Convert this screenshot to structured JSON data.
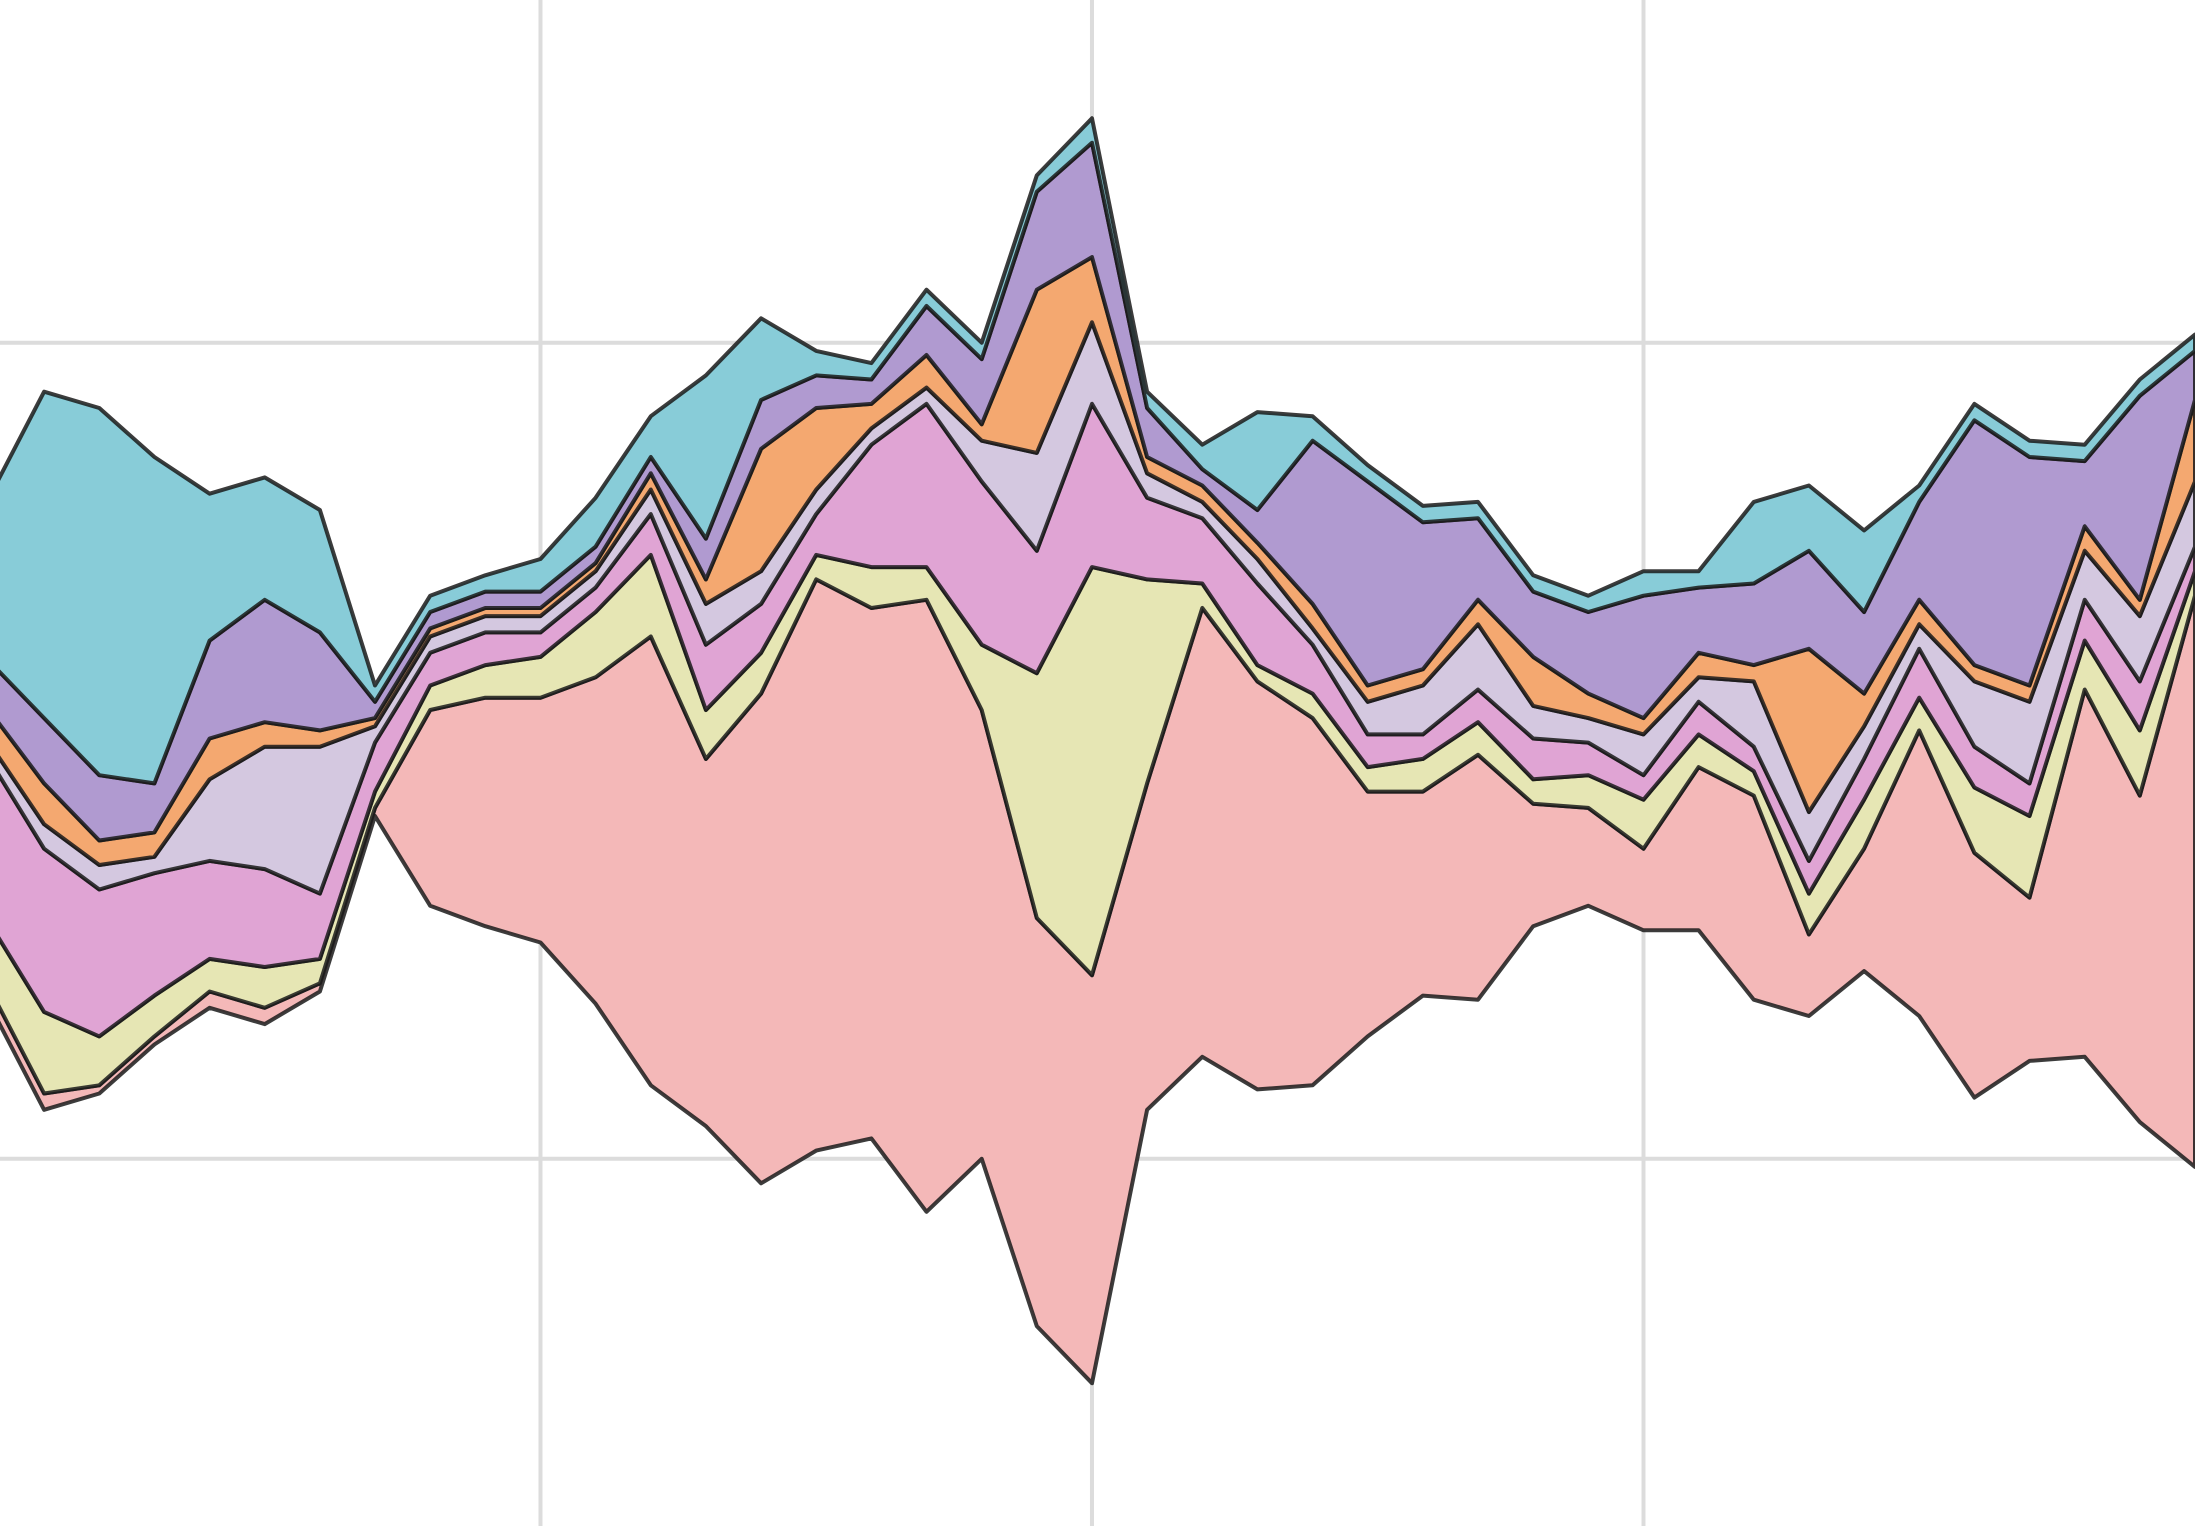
{
  "chart_data": {
    "type": "streamgraph",
    "x": [
      0,
      10,
      20,
      30,
      40,
      50,
      60,
      70,
      80,
      90,
      100,
      110,
      120,
      130,
      140,
      150,
      160,
      170,
      180,
      190,
      200,
      210,
      220,
      230,
      240,
      250,
      260,
      270,
      280,
      290,
      300,
      310,
      320,
      330,
      340,
      350,
      360,
      370,
      380,
      390,
      400
    ],
    "xlim": [
      2,
      400
    ],
    "xticks": [
      100,
      200,
      300
    ],
    "ylim": [
      -95,
      92
    ],
    "yticks": [
      -50,
      50
    ],
    "grid": true,
    "series": [
      {
        "color": "#f4b8b8",
        "values": [
          2,
          2,
          1,
          1,
          2,
          2,
          1,
          1,
          24,
          28,
          30,
          40,
          55,
          45,
          60,
          70,
          65,
          75,
          55,
          50,
          50,
          40,
          55,
          50,
          45,
          30,
          25,
          30,
          15,
          12,
          10,
          20,
          25,
          10,
          15,
          35,
          30,
          20,
          45,
          40,
          70
        ]
      },
      {
        "color": "#e6e6b4",
        "values": [
          8,
          10,
          6,
          5,
          4,
          5,
          3,
          2,
          3,
          4,
          5,
          8,
          10,
          6,
          5,
          3,
          5,
          4,
          8,
          30,
          50,
          25,
          3,
          2,
          3,
          3,
          4,
          4,
          3,
          4,
          6,
          4,
          3,
          5,
          6,
          4,
          8,
          10,
          6,
          8,
          3
        ]
      },
      {
        "color": "#e0a4d4",
        "values": [
          20,
          20,
          18,
          15,
          12,
          12,
          8,
          6,
          4,
          4,
          3,
          3,
          5,
          8,
          6,
          5,
          15,
          20,
          20,
          15,
          20,
          10,
          8,
          10,
          6,
          4,
          3,
          4,
          5,
          4,
          3,
          4,
          3,
          4,
          5,
          6,
          5,
          4,
          5,
          6,
          3
        ]
      },
      {
        "color": "#d4c8e0",
        "values": [
          2,
          3,
          3,
          2,
          10,
          15,
          18,
          2,
          2,
          2,
          2,
          2,
          3,
          5,
          4,
          3,
          2,
          2,
          5,
          12,
          10,
          3,
          2,
          3,
          2,
          4,
          6,
          8,
          4,
          3,
          5,
          3,
          8,
          6,
          4,
          3,
          8,
          10,
          6,
          8,
          8
        ]
      },
      {
        "color": "#f4a870",
        "values": [
          4,
          5,
          3,
          3,
          5,
          3,
          2,
          1,
          1,
          1,
          1,
          1,
          2,
          3,
          15,
          10,
          3,
          4,
          2,
          20,
          8,
          2,
          2,
          2,
          3,
          2,
          2,
          3,
          6,
          3,
          2,
          3,
          2,
          20,
          4,
          3,
          2,
          2,
          3,
          2,
          10
        ]
      },
      {
        "color": "#b09ad0",
        "values": [
          6,
          8,
          8,
          6,
          12,
          15,
          12,
          2,
          2,
          2,
          2,
          2,
          2,
          5,
          6,
          4,
          3,
          6,
          8,
          12,
          14,
          6,
          2,
          4,
          20,
          25,
          18,
          10,
          8,
          10,
          15,
          8,
          10,
          12,
          10,
          12,
          30,
          28,
          8,
          25,
          6
        ]
      },
      {
        "color": "#88ccd8",
        "values": [
          20,
          40,
          45,
          40,
          18,
          15,
          15,
          2,
          2,
          2,
          4,
          6,
          5,
          20,
          10,
          3,
          2,
          2,
          2,
          2,
          3,
          2,
          3,
          12,
          3,
          2,
          2,
          2,
          2,
          2,
          3,
          2,
          10,
          8,
          10,
          2,
          2,
          2,
          2,
          2,
          2
        ]
      }
    ]
  }
}
